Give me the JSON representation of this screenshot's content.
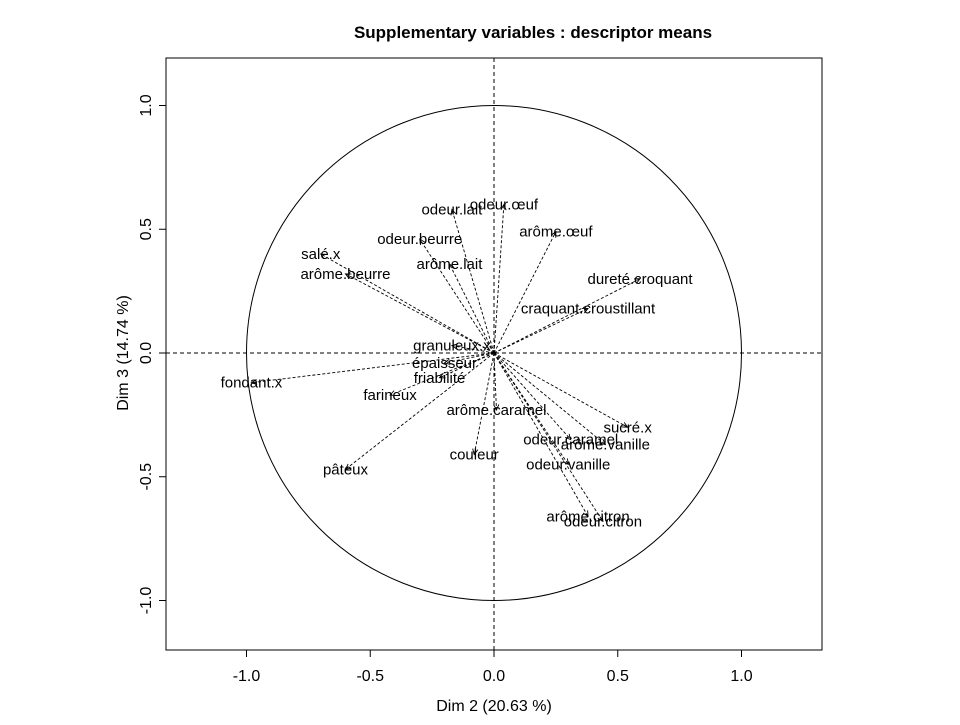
{
  "chart_data": {
    "type": "scatter",
    "title": "Supplementary variables : descriptor means",
    "xlabel": "Dim 2 (20.63 %)",
    "ylabel": "Dim 3 (14.74 %)",
    "xlim": [
      -1.3,
      1.3
    ],
    "ylim": [
      -1.2,
      1.2
    ],
    "x_ticks": [
      "-1.0",
      "-0.5",
      "0.0",
      "0.5",
      "1.0"
    ],
    "y_ticks": [
      "-1.0",
      "-0.5",
      "0.0",
      "0.5",
      "1.0"
    ],
    "x_tick_values": [
      -1,
      -0.5,
      0,
      0.5,
      1
    ],
    "y_tick_values": [
      -1,
      -0.5,
      0,
      0.5,
      1
    ],
    "unit_circle": true,
    "grid": false,
    "variables": [
      {
        "name": "odeur.œuf",
        "x": 0.04,
        "y": 0.6
      },
      {
        "name": "odeur.lait",
        "x": -0.17,
        "y": 0.58
      },
      {
        "name": "arôme.œuf",
        "x": 0.25,
        "y": 0.49
      },
      {
        "name": "odeur.beurre",
        "x": -0.3,
        "y": 0.46
      },
      {
        "name": "salé.x",
        "x": -0.7,
        "y": 0.4
      },
      {
        "name": "arôme.lait",
        "x": -0.18,
        "y": 0.36
      },
      {
        "name": "arôme.beurre",
        "x": -0.6,
        "y": 0.32
      },
      {
        "name": "dureté.croquant",
        "x": 0.59,
        "y": 0.3
      },
      {
        "name": "craquant.croustillant",
        "x": 0.38,
        "y": 0.18
      },
      {
        "name": "granuleux.x",
        "x": -0.17,
        "y": 0.03
      },
      {
        "name": "épaisseur",
        "x": -0.2,
        "y": -0.04
      },
      {
        "name": "friabilité",
        "x": -0.22,
        "y": -0.1
      },
      {
        "name": "fondant.x",
        "x": -0.98,
        "y": -0.12
      },
      {
        "name": "farineux",
        "x": -0.42,
        "y": -0.17
      },
      {
        "name": "arôme.caramel",
        "x": 0.01,
        "y": -0.23
      },
      {
        "name": "sucré.x",
        "x": 0.54,
        "y": -0.3
      },
      {
        "name": "arôme.vanille",
        "x": 0.45,
        "y": -0.37
      },
      {
        "name": "odeur.caramel",
        "x": 0.31,
        "y": -0.35
      },
      {
        "name": "odeur.vanille",
        "x": 0.3,
        "y": -0.45
      },
      {
        "name": "couleur",
        "x": -0.08,
        "y": -0.41
      },
      {
        "name": "pâteux",
        "x": -0.6,
        "y": -0.47
      },
      {
        "name": "odeur.citron",
        "x": 0.44,
        "y": -0.68
      },
      {
        "name": "arôme.citron",
        "x": 0.38,
        "y": -0.66
      }
    ]
  }
}
